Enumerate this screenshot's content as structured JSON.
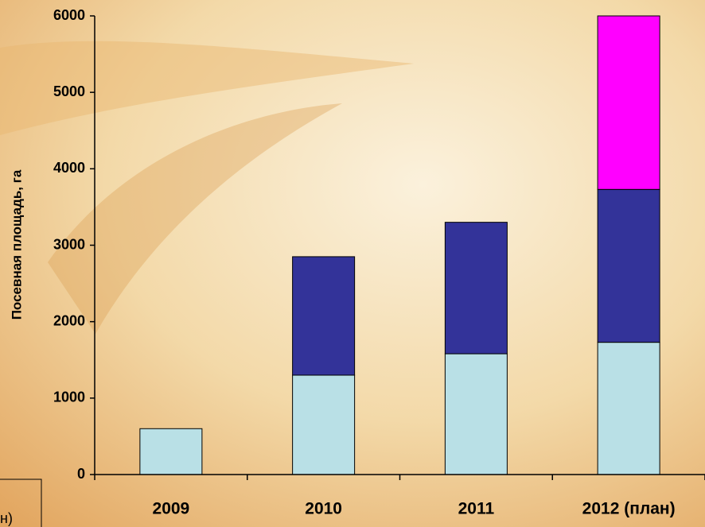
{
  "chart_data": {
    "type": "stacked_bar",
    "y_label": "Посевная площадь, га",
    "categories": [
      "2009",
      "2010",
      "2011",
      "2012 (план)"
    ],
    "series": [
      {
        "color": "#b9e0e6",
        "values": [
          600,
          1300,
          1580,
          1730
        ]
      },
      {
        "color": "#333399",
        "values": [
          null,
          1550,
          1720,
          2000
        ]
      },
      {
        "color": "#ff00ff",
        "values": [
          null,
          null,
          null,
          2270
        ]
      }
    ],
    "ylim": [
      0,
      6000
    ],
    "yticks": [
      0,
      1000,
      2000,
      3000,
      4000,
      5000,
      6000
    ],
    "legend_fragment": "н)"
  }
}
